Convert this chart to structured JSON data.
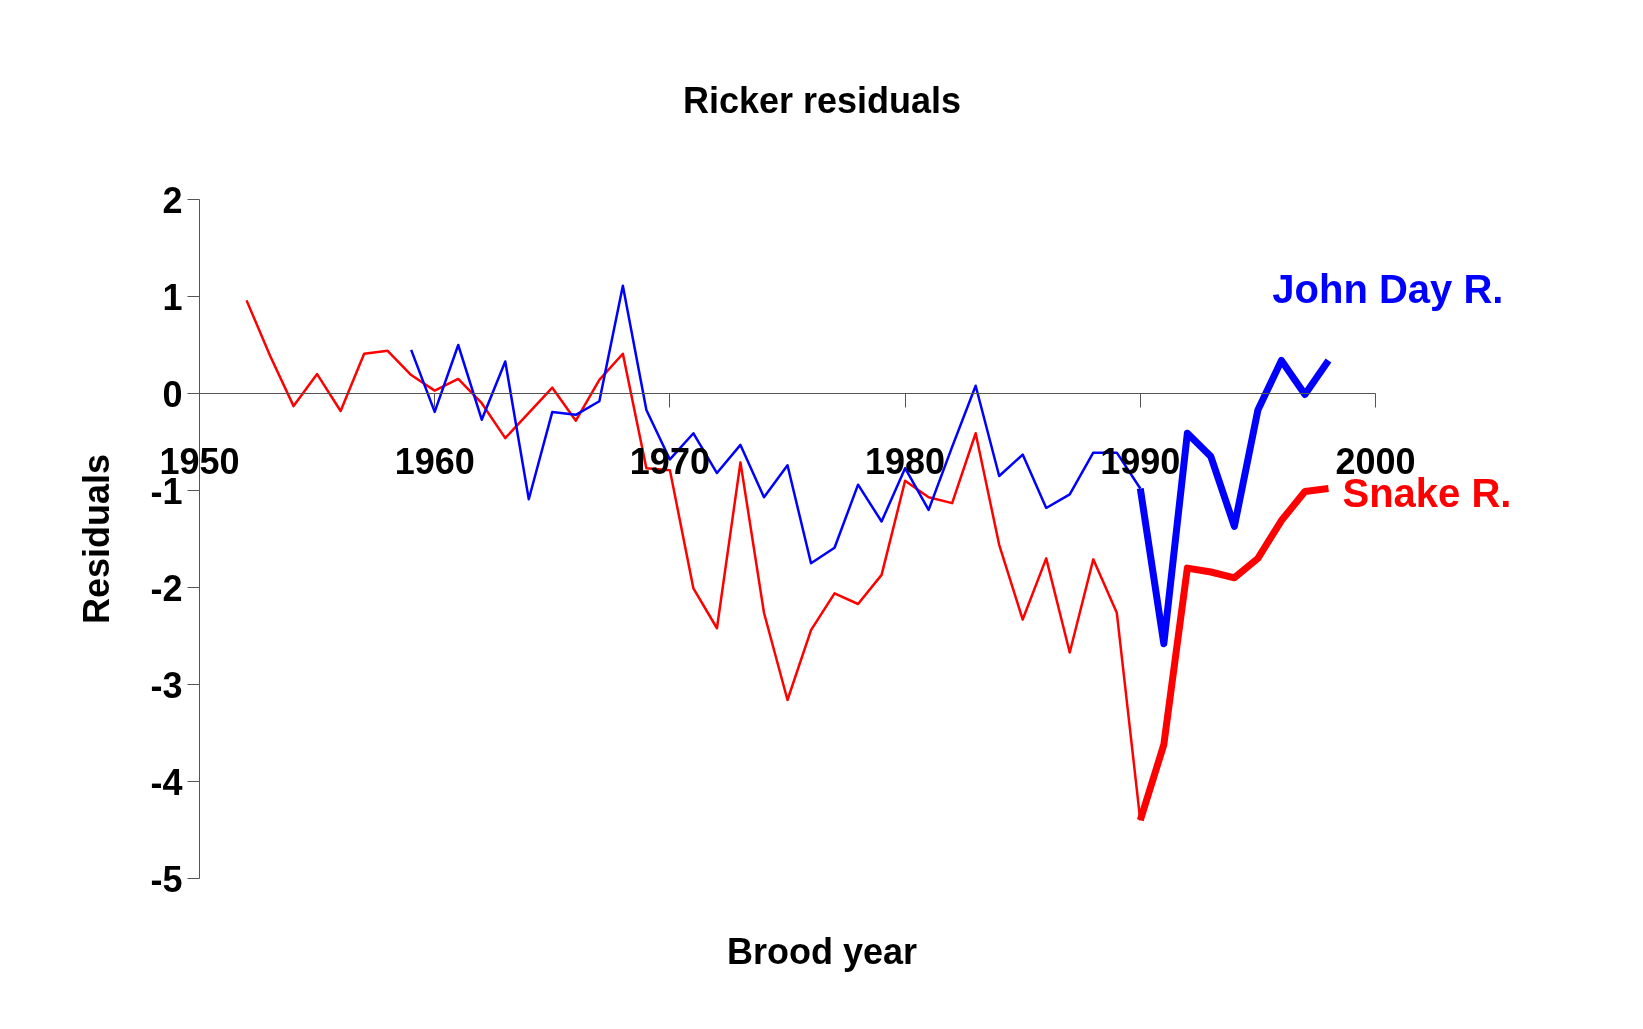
{
  "chart_data": {
    "type": "line",
    "title": "Ricker residuals",
    "xlabel": "Brood year",
    "ylabel": "Residuals",
    "xlim": [
      1950,
      2000
    ],
    "xticks": [
      1950,
      1960,
      1970,
      1980,
      1990,
      2000
    ],
    "ylim": [
      -5,
      2
    ],
    "yticks": [
      -5,
      -4,
      -3,
      -2,
      -1,
      0,
      1,
      2
    ],
    "grid": false,
    "legend": false,
    "marker": "none",
    "line_style": "solid",
    "series": [
      {
        "color": "#ff0000",
        "x": [
          1952,
          1953,
          1954,
          1955,
          1956,
          1957,
          1958,
          1959,
          1960,
          1961,
          1962,
          1963,
          1964,
          1965,
          1966,
          1967,
          1968,
          1969,
          1970,
          1971,
          1972,
          1973,
          1974,
          1975,
          1976,
          1977,
          1978,
          1979,
          1980,
          1981,
          1982,
          1983,
          1984,
          1985,
          1986,
          1987,
          1988,
          1989,
          1990
        ],
        "values": [
          0.96,
          0.39,
          -0.13,
          0.2,
          -0.18,
          0.41,
          0.44,
          0.19,
          0.03,
          0.15,
          -0.1,
          -0.46,
          -0.2,
          0.06,
          -0.28,
          0.14,
          0.41,
          -0.77,
          -0.79,
          -2.01,
          -2.42,
          -0.71,
          -2.26,
          -3.16,
          -2.44,
          -2.06,
          -2.17,
          -1.87,
          -0.9,
          -1.07,
          -1.13,
          -0.41,
          -1.56,
          -2.33,
          -1.7,
          -2.67,
          -1.71,
          -2.26,
          -4.4
        ]
      },
      {
        "name": "Snake R.",
        "color": "#ff0000",
        "x": [
          1990,
          1991,
          1992,
          1993,
          1994,
          1995,
          1996,
          1997,
          1998
        ],
        "values": [
          -4.4,
          -3.62,
          -1.8,
          -1.84,
          -1.9,
          -1.7,
          -1.31,
          -1.01,
          -0.98
        ]
      },
      {
        "color": "#0000ff",
        "x": [
          1959,
          1960,
          1961,
          1962,
          1963,
          1964,
          1965,
          1966,
          1967,
          1968,
          1969,
          1970,
          1971,
          1972,
          1973,
          1974,
          1975,
          1976,
          1977,
          1978,
          1979,
          1980,
          1981,
          1982,
          1983,
          1984,
          1985,
          1986,
          1987,
          1988,
          1989,
          1990
        ],
        "values": [
          0.45,
          -0.19,
          0.5,
          -0.27,
          0.33,
          -1.09,
          -0.19,
          -0.22,
          -0.08,
          1.11,
          -0.17,
          -0.68,
          -0.41,
          -0.82,
          -0.53,
          -1.07,
          -0.74,
          -1.75,
          -1.59,
          -0.94,
          -1.32,
          -0.77,
          -1.2,
          -0.55,
          0.08,
          -0.85,
          -0.63,
          -1.18,
          -1.04,
          -0.61,
          -0.61,
          -0.98
        ]
      },
      {
        "name": "John Day R.",
        "color": "#0000ff",
        "x": [
          1990,
          1991,
          1992,
          1993,
          1994,
          1995,
          1996,
          1997,
          1998
        ],
        "values": [
          -0.98,
          -2.58,
          -0.41,
          -0.65,
          -1.37,
          -0.17,
          0.34,
          -0.01,
          0.34
        ]
      }
    ]
  }
}
